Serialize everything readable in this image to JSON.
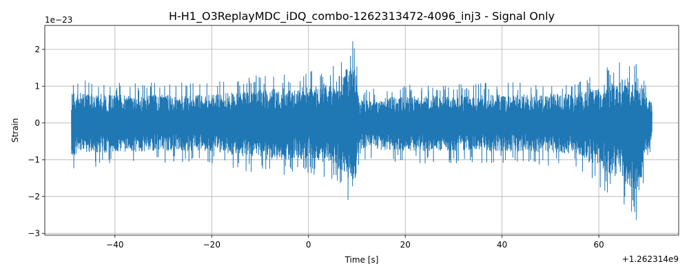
{
  "chart_data": {
    "type": "line",
    "title": "H-H1_O3ReplayMDC_iDQ_combo-1262313472-4096_inj3 - Signal Only",
    "xlabel": "Time [s]",
    "ylabel": "Strain",
    "x_offset_label": "+1.262314e9",
    "y_scale_label": "1e−23",
    "xlim": [
      -54.5,
      76.5
    ],
    "ylim": [
      -3.05,
      2.65
    ],
    "x_ticks": [
      -40,
      -20,
      0,
      20,
      40,
      60
    ],
    "x_tick_labels": [
      "−40",
      "−20",
      "0",
      "20",
      "40",
      "60"
    ],
    "y_ticks": [
      -3,
      -2,
      -1,
      0,
      1,
      2
    ],
    "y_tick_labels": [
      "−3",
      "−2",
      "−1",
      "0",
      "1",
      "2"
    ],
    "grid": true,
    "color": "#1f77b4",
    "series": [
      {
        "name": "",
        "x_range": [
          -49,
          71
        ],
        "envelope": [
          {
            "x": -49,
            "upper": 1.2,
            "lower": -1.25
          },
          {
            "x": -40,
            "upper": 1.1,
            "lower": -1.15
          },
          {
            "x": -30,
            "upper": 1.1,
            "lower": -1.1
          },
          {
            "x": -20,
            "upper": 1.1,
            "lower": -1.1
          },
          {
            "x": -10,
            "upper": 1.3,
            "lower": -1.45
          },
          {
            "x": 0,
            "upper": 1.4,
            "lower": -1.4
          },
          {
            "x": 5,
            "upper": 1.6,
            "lower": -1.6
          },
          {
            "x": 9.5,
            "upper": 2.4,
            "lower": -2.55
          },
          {
            "x": 10.5,
            "upper": 0.9,
            "lower": -1.0
          },
          {
            "x": 20,
            "upper": 1.05,
            "lower": -1.1
          },
          {
            "x": 40,
            "upper": 1.1,
            "lower": -1.1
          },
          {
            "x": 55,
            "upper": 1.15,
            "lower": -1.2
          },
          {
            "x": 68.5,
            "upper": 1.9,
            "lower": -2.75
          },
          {
            "x": 69.5,
            "upper": 1.1,
            "lower": -1.2
          },
          {
            "x": 71,
            "upper": 0.85,
            "lower": -0.85
          }
        ]
      }
    ]
  }
}
